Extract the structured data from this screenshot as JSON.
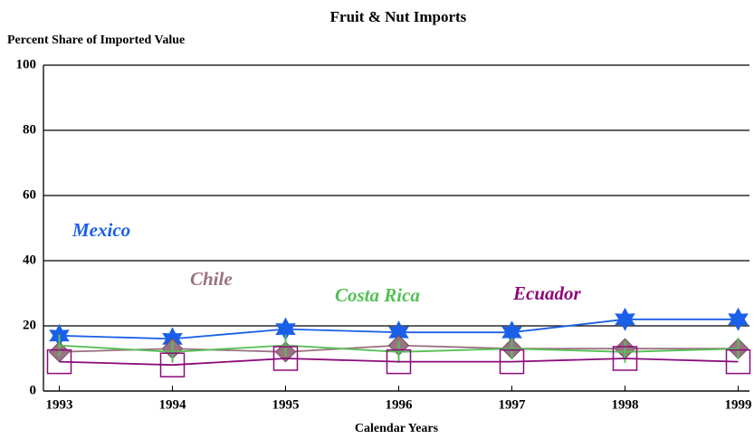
{
  "chart_data": {
    "type": "line",
    "title": "Fruit & Nut Imports",
    "y_label": "Percent Share of Imported Value",
    "x_label": "Calendar Years",
    "x": [
      1993,
      1994,
      1995,
      1996,
      1997,
      1998,
      1999
    ],
    "xlim": [
      1992.86,
      1999.1
    ],
    "xticks": [
      1993,
      1994,
      1995,
      1996,
      1997,
      1998,
      1999
    ],
    "ylim": [
      0,
      100
    ],
    "yticks": [
      0,
      20,
      40,
      60,
      80,
      100
    ],
    "grid": true,
    "series": [
      {
        "name": "Mexico",
        "color": "#1a5fe8",
        "marker": "star",
        "values": [
          17,
          16,
          19,
          18,
          18,
          22,
          22
        ]
      },
      {
        "name": "Chile",
        "color": "#9a7282",
        "marker": "diamond",
        "values": [
          12,
          13,
          12,
          14,
          13,
          13,
          13
        ]
      },
      {
        "name": "Costa Rica",
        "color": "#55c055",
        "marker": "tick",
        "values": [
          14,
          12,
          14,
          12,
          13,
          12,
          13
        ]
      },
      {
        "name": "Ecuador",
        "color": "#8b0a7a",
        "marker": "square",
        "values": [
          9,
          8,
          10,
          9,
          9,
          10,
          9
        ]
      }
    ]
  }
}
